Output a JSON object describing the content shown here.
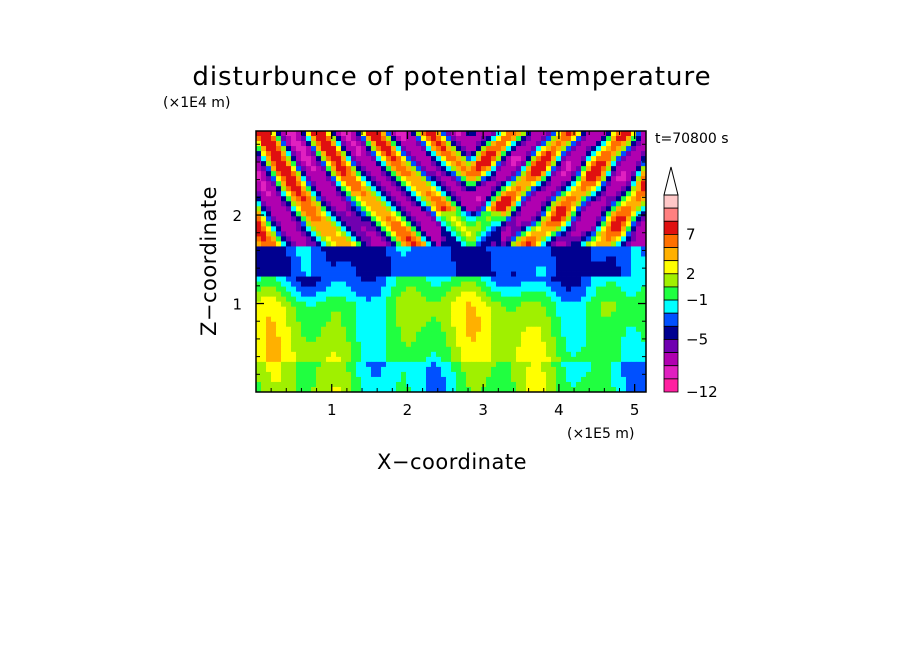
{
  "chart_data": {
    "type": "heatmap",
    "title": "disturbunce of potential temperature",
    "xlabel": "X−coordinate",
    "ylabel": "Z−coordinate",
    "x_unit": "(×1E5 m)",
    "y_unit": "(×1E4 m)",
    "annotation": "t=70800 s",
    "xlim": [
      0,
      5.15
    ],
    "ylim": [
      0,
      2.95
    ],
    "x_ticks": [
      "1",
      "2",
      "3",
      "4",
      "5"
    ],
    "y_ticks": [
      "1",
      "2"
    ],
    "x_tick_values": [
      1,
      2,
      3,
      4,
      5
    ],
    "y_tick_values": [
      1,
      2
    ],
    "colorbar": {
      "labels": [
        "7",
        "2",
        "−1",
        "−5",
        "−12"
      ],
      "colors": [
        "#ffc8c8",
        "#ff8080",
        "#e01010",
        "#ff7000",
        "#ffb000",
        "#ffff00",
        "#a0f000",
        "#20ff40",
        "#00ffff",
        "#0050ff",
        "#000090",
        "#7000b0",
        "#b000b0",
        "#e020c0",
        "#ff20a0"
      ],
      "extend": "max"
    }
  }
}
